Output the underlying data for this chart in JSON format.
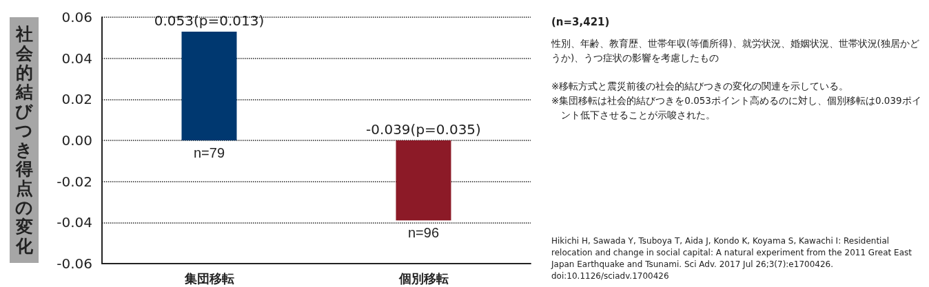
{
  "chart_data": {
    "type": "bar",
    "ylabel": "社会的結びつき得点の変化",
    "categories": [
      "集団移転",
      "個別移転"
    ],
    "values": [
      0.053,
      -0.039
    ],
    "colors": [
      "#003870",
      "#8c1a27"
    ],
    "value_labels": [
      "0.053(p=0.013)",
      "-0.039(p=0.035)"
    ],
    "ylim": [
      -0.06,
      0.06
    ],
    "yticks": [
      {
        "value": -0.06,
        "label": "-0.06"
      },
      {
        "value": -0.04,
        "label": "-0.04"
      },
      {
        "value": -0.02,
        "label": "-0.02"
      },
      {
        "value": 0,
        "label": "0.00"
      },
      {
        "value": 0.02,
        "label": "0.02"
      },
      {
        "value": 0.04,
        "label": "0.04"
      },
      {
        "value": 0.06,
        "label": "0.06"
      }
    ],
    "grid": "y",
    "annotations": [
      {
        "text": "n=79",
        "x": "集団移転",
        "y": 0
      },
      {
        "text": "n=96",
        "x": "個別移転",
        "y": -0.039
      },
      "(n=3,421)",
      "性別、年齢、教育歴、世帯年収(等価所得)、就労状況、婚姻状況、世帯状況(独居かどうか)、うつ症状の影響を考慮したもの",
      "※移転方式と震災前後の社会的結びつきの変化の関連を示している。",
      "※集団移転は社会的結びつきを0.053ポイント高めるのに対し、個別移転は0.039ポイント低下させることが示唆された。",
      "Hikichi H, Sawada Y, Tsuboya T, Aida J, Kondo K, Koyama S, Kawachi I: Residential relocation and change in social capital: A natural experiment from the 2011 Great East Japan Earthquake and Tsunami. Sci Adv. 2017 Jul 26;3(7):e1700426. doi:10.1126/sciadv.1700426"
    ]
  }
}
